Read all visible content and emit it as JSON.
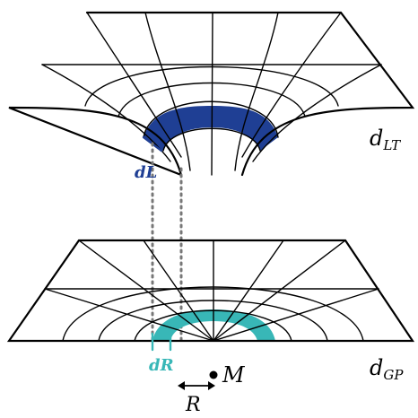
{
  "labels": {
    "top_surface": "d",
    "top_surface_sub": "LT",
    "bottom_surface": "d",
    "bottom_surface_sub": "GP",
    "length_element": "dL",
    "radius_element": "dR",
    "mass": "M",
    "radius": "R"
  },
  "colors": {
    "stroke": "#000000",
    "top_region": "#1f3f94",
    "bottom_region": "#38b7b7",
    "dotted": "#777777",
    "dL_label": "#1f3f94",
    "dR_label": "#38b7b7"
  }
}
